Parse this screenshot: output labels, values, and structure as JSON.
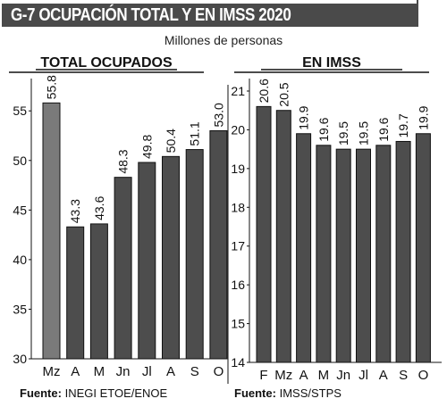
{
  "title": "G-7   OCUPACIÓN TOTAL Y EN IMSS 2020",
  "subtitle": "Millones de personas",
  "colors": {
    "title_band": "#4a4a4a",
    "bar": "#4d4d4d",
    "bar_highlight": "#7a7a7a",
    "bar_stroke": "#111111"
  },
  "sources": [
    {
      "label": "Fuente:",
      "text": "INEGI  ETOE/ENOE"
    },
    {
      "label": "Fuente:",
      "text": "IMSS/STPS"
    }
  ],
  "chart_data": [
    {
      "type": "bar",
      "title": "TOTAL OCUPADOS",
      "categories": [
        "Mz",
        "A",
        "M",
        "Jn",
        "Jl",
        "A",
        "S",
        "O"
      ],
      "values": [
        55.8,
        43.3,
        43.6,
        48.3,
        49.8,
        50.4,
        51.1,
        53.0
      ],
      "value_labels": [
        "55.8",
        "43.3",
        "43.6",
        "48.3",
        "49.8",
        "50.4",
        "51.1",
        "53.0"
      ],
      "highlight_index": 0,
      "ylim": [
        30,
        57
      ],
      "yticks": [
        30,
        35,
        40,
        45,
        50,
        55
      ],
      "xlabel": "",
      "ylabel": "",
      "grid": false
    },
    {
      "type": "bar",
      "title": "EN IMSS",
      "categories": [
        "F",
        "Mz",
        "A",
        "M",
        "Jn",
        "Jl",
        "A",
        "S",
        "O"
      ],
      "values": [
        20.6,
        20.5,
        19.9,
        19.6,
        19.5,
        19.5,
        19.6,
        19.7,
        19.9
      ],
      "value_labels": [
        "20.6",
        "20.5",
        "19.9",
        "19.6",
        "19.5",
        "19.5",
        "19.6",
        "19.7",
        "19.9"
      ],
      "ylim": [
        14,
        21
      ],
      "yticks": [
        14,
        15,
        16,
        17,
        18,
        19,
        20,
        21
      ],
      "xlabel": "",
      "ylabel": "",
      "grid": false
    }
  ]
}
